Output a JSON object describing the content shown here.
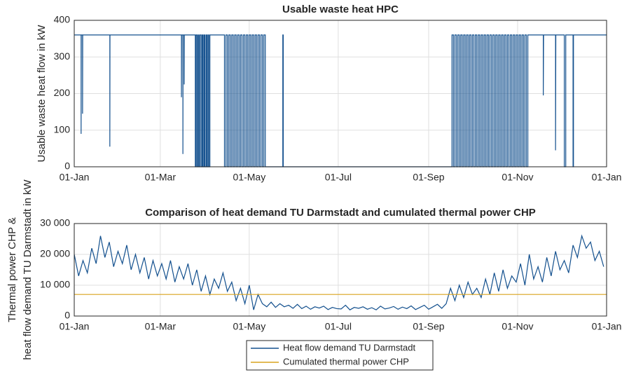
{
  "chart_data": [
    {
      "type": "line",
      "title": "Usable waste heat HPC",
      "ylabel": [
        "Usable waste heat flow in kW"
      ],
      "xlim": [
        0,
        365
      ],
      "xticks": [
        {
          "value": 0,
          "label": "01-Jan"
        },
        {
          "value": 59,
          "label": "01-Mar"
        },
        {
          "value": 120,
          "label": "01-May"
        },
        {
          "value": 181,
          "label": "01-Jul"
        },
        {
          "value": 243,
          "label": "01-Sep"
        },
        {
          "value": 304,
          "label": "01-Nov"
        },
        {
          "value": 365,
          "label": "01-Jan"
        }
      ],
      "ylim": [
        0,
        400
      ],
      "yticks": [
        0,
        100,
        200,
        300,
        400
      ],
      "grid": true,
      "series": [
        {
          "color": "#13508e",
          "x": [
            0,
            4.7,
            4.7,
            4.8,
            5.7,
            5.7,
            5.8,
            24.4,
            24.4,
            24.5,
            73.5,
            73.5,
            73.6,
            74.5,
            74.5,
            74.6,
            75.4,
            75.4,
            75.5,
            83,
            83,
            83.6,
            83.6,
            84.3,
            84.3,
            85,
            85,
            85.5,
            85.5,
            86.2,
            86.2,
            87,
            87,
            87.7,
            87.7,
            88.3,
            88.3,
            89,
            89,
            89.6,
            89.6,
            90.4,
            90.4,
            91,
            91,
            91.7,
            91.7,
            92.3,
            92.3,
            93,
            93,
            103,
            103,
            104,
            104,
            105,
            105,
            106,
            106,
            107,
            107,
            108,
            108,
            109,
            109,
            110,
            110,
            111,
            111,
            112,
            112,
            113,
            113,
            114,
            114,
            115,
            115,
            116,
            116,
            117,
            117,
            118,
            118,
            119,
            119,
            120,
            120,
            121,
            121,
            122,
            122,
            123,
            123,
            124,
            124,
            125,
            125,
            126,
            126,
            127,
            127,
            128,
            128,
            129,
            129,
            130,
            130,
            131,
            131,
            143,
            143,
            143.3,
            143.3,
            259,
            259,
            260,
            260,
            261,
            261,
            262,
            262,
            263,
            263,
            264,
            264,
            265,
            265,
            266,
            266,
            267,
            267,
            268,
            268,
            269,
            269,
            270,
            270,
            271,
            271,
            272,
            272,
            273,
            273,
            274,
            274,
            275,
            275,
            276,
            276,
            277,
            277,
            278,
            278,
            279,
            279,
            280,
            280,
            281,
            281,
            282,
            282,
            283,
            283,
            284,
            284,
            285,
            285,
            286,
            286,
            287,
            287,
            288,
            288,
            289,
            289,
            290,
            290,
            291,
            291,
            292,
            292,
            293,
            293,
            294,
            294,
            295,
            295,
            296,
            296,
            297,
            297,
            298,
            298,
            299,
            299,
            300,
            300,
            301,
            301,
            302,
            302,
            303,
            303,
            304,
            304,
            305,
            305,
            306,
            306,
            307,
            307,
            308,
            308,
            309,
            309,
            310,
            310,
            311,
            311,
            321.6,
            321.6,
            321.8,
            330,
            330,
            330.2,
            336,
            336,
            337,
            337,
            342,
            342,
            342.3,
            342.3,
            365
          ],
          "values": [
            360,
            360,
            90,
            360,
            360,
            145,
            360,
            360,
            55,
            360,
            360,
            190,
            360,
            360,
            35,
            360,
            360,
            225,
            360,
            360,
            0,
            0,
            360,
            360,
            0,
            0,
            360,
            360,
            0,
            0,
            360,
            360,
            0,
            0,
            360,
            360,
            0,
            0,
            360,
            360,
            0,
            0,
            360,
            360,
            0,
            0,
            360,
            360,
            0,
            0,
            360,
            360,
            0,
            0,
            360,
            360,
            0,
            0,
            360,
            360,
            0,
            0,
            360,
            360,
            0,
            0,
            360,
            360,
            0,
            0,
            360,
            360,
            0,
            0,
            360,
            360,
            0,
            0,
            360,
            360,
            0,
            0,
            360,
            360,
            0,
            0,
            360,
            360,
            0,
            0,
            360,
            360,
            0,
            0,
            360,
            360,
            0,
            0,
            360,
            360,
            0,
            0,
            360,
            360,
            0,
            0,
            360,
            360,
            0,
            0,
            360,
            360,
            0,
            0,
            360,
            360,
            0,
            0,
            360,
            360,
            0,
            0,
            360,
            360,
            0,
            0,
            360,
            360,
            0,
            0,
            360,
            360,
            0,
            0,
            360,
            360,
            0,
            0,
            360,
            360,
            0,
            0,
            360,
            360,
            0,
            0,
            360,
            360,
            0,
            0,
            360,
            360,
            0,
            0,
            360,
            360,
            0,
            0,
            360,
            360,
            0,
            0,
            360,
            360,
            0,
            0,
            360,
            360,
            0,
            0,
            360,
            360,
            0,
            0,
            360,
            360,
            0,
            0,
            360,
            360,
            0,
            0,
            360,
            360,
            0,
            0,
            360,
            360,
            0,
            0,
            360,
            360,
            0,
            0,
            360,
            360,
            0,
            0,
            360,
            360,
            0,
            0,
            360,
            360,
            0,
            0,
            360,
            360,
            0,
            0,
            360,
            360,
            0,
            0,
            360,
            360,
            0,
            0,
            360,
            360,
            195,
            360,
            360,
            45,
            360,
            360,
            0,
            0,
            360,
            360,
            0,
            0,
            360,
            360
          ]
        }
      ]
    },
    {
      "type": "line",
      "title": "Comparison of heat demand TU Darmstadt and cumulated thermal power CHP",
      "ylabel": [
        "Thermal power CHP &",
        "heat flow demand TU Darmstadt in kW"
      ],
      "xlim": [
        0,
        365
      ],
      "xticks": [
        {
          "value": 0,
          "label": "01-Jan"
        },
        {
          "value": 59,
          "label": "01-Mar"
        },
        {
          "value": 120,
          "label": "01-May"
        },
        {
          "value": 181,
          "label": "01-Jul"
        },
        {
          "value": 243,
          "label": "01-Sep"
        },
        {
          "value": 304,
          "label": "01-Nov"
        },
        {
          "value": 365,
          "label": "01-Jan"
        }
      ],
      "ylim": [
        0,
        30000
      ],
      "yticks": [
        0,
        {
          "value": 10000,
          "label": "10 000"
        },
        {
          "value": 20000,
          "label": "20 000"
        },
        {
          "value": 30000,
          "label": "30 000"
        }
      ],
      "grid": true,
      "legend": "southoutside",
      "series": [
        {
          "name": "Heat flow demand TU Darmstadt",
          "color": "#13508e",
          "x": [
            0,
            3,
            6,
            9,
            12,
            15,
            18,
            21,
            24,
            27,
            30,
            33,
            36,
            39,
            42,
            45,
            48,
            51,
            54,
            57,
            60,
            63,
            66,
            69,
            72,
            75,
            78,
            81,
            84,
            87,
            90,
            93,
            96,
            99,
            102,
            105,
            108,
            111,
            114,
            117,
            120,
            123,
            126,
            129,
            132,
            135,
            138,
            141,
            144,
            147,
            150,
            153,
            156,
            159,
            162,
            165,
            168,
            171,
            174,
            177,
            180,
            183,
            186,
            189,
            192,
            195,
            198,
            201,
            204,
            207,
            210,
            213,
            216,
            219,
            222,
            225,
            228,
            231,
            234,
            237,
            240,
            243,
            246,
            249,
            252,
            255,
            258,
            261,
            264,
            267,
            270,
            273,
            276,
            279,
            282,
            285,
            288,
            291,
            294,
            297,
            300,
            303,
            306,
            309,
            312,
            315,
            318,
            321,
            324,
            327,
            330,
            333,
            336,
            339,
            342,
            345,
            348,
            351,
            354,
            357,
            360,
            363
          ],
          "values": [
            20000,
            13000,
            18000,
            14000,
            22000,
            17000,
            26000,
            19000,
            24000,
            16000,
            21000,
            17000,
            23000,
            15000,
            20000,
            14000,
            19000,
            12000,
            18000,
            13000,
            17000,
            12000,
            18000,
            11000,
            16000,
            12000,
            17000,
            10000,
            15000,
            8000,
            13000,
            7000,
            12000,
            9000,
            14000,
            8000,
            11000,
            5000,
            9000,
            4000,
            10000,
            2000,
            7000,
            4000,
            3000,
            4500,
            2800,
            4000,
            3000,
            3500,
            2500,
            3800,
            2400,
            3200,
            2200,
            3000,
            2600,
            3200,
            2100,
            2800,
            2400,
            2300,
            3500,
            2000,
            2800,
            2500,
            3000,
            2200,
            2700,
            2000,
            3200,
            2300,
            2600,
            3100,
            2200,
            2900,
            2400,
            3300,
            2100,
            2800,
            3500,
            2200,
            3000,
            3800,
            2500,
            4000,
            9000,
            5000,
            10000,
            6000,
            11000,
            7000,
            9000,
            6000,
            12000,
            7000,
            14000,
            8000,
            15000,
            9000,
            13000,
            11000,
            17000,
            10000,
            20000,
            12000,
            16000,
            11000,
            19000,
            13000,
            21000,
            15000,
            18000,
            14000,
            23000,
            19000,
            26000,
            22000,
            24000,
            18000,
            21000,
            16000
          ]
        },
        {
          "name": "Cumulated thermal power CHP",
          "color": "#d9a31e",
          "x": [
            0,
            365
          ],
          "values": [
            7000,
            7000
          ]
        }
      ]
    }
  ]
}
